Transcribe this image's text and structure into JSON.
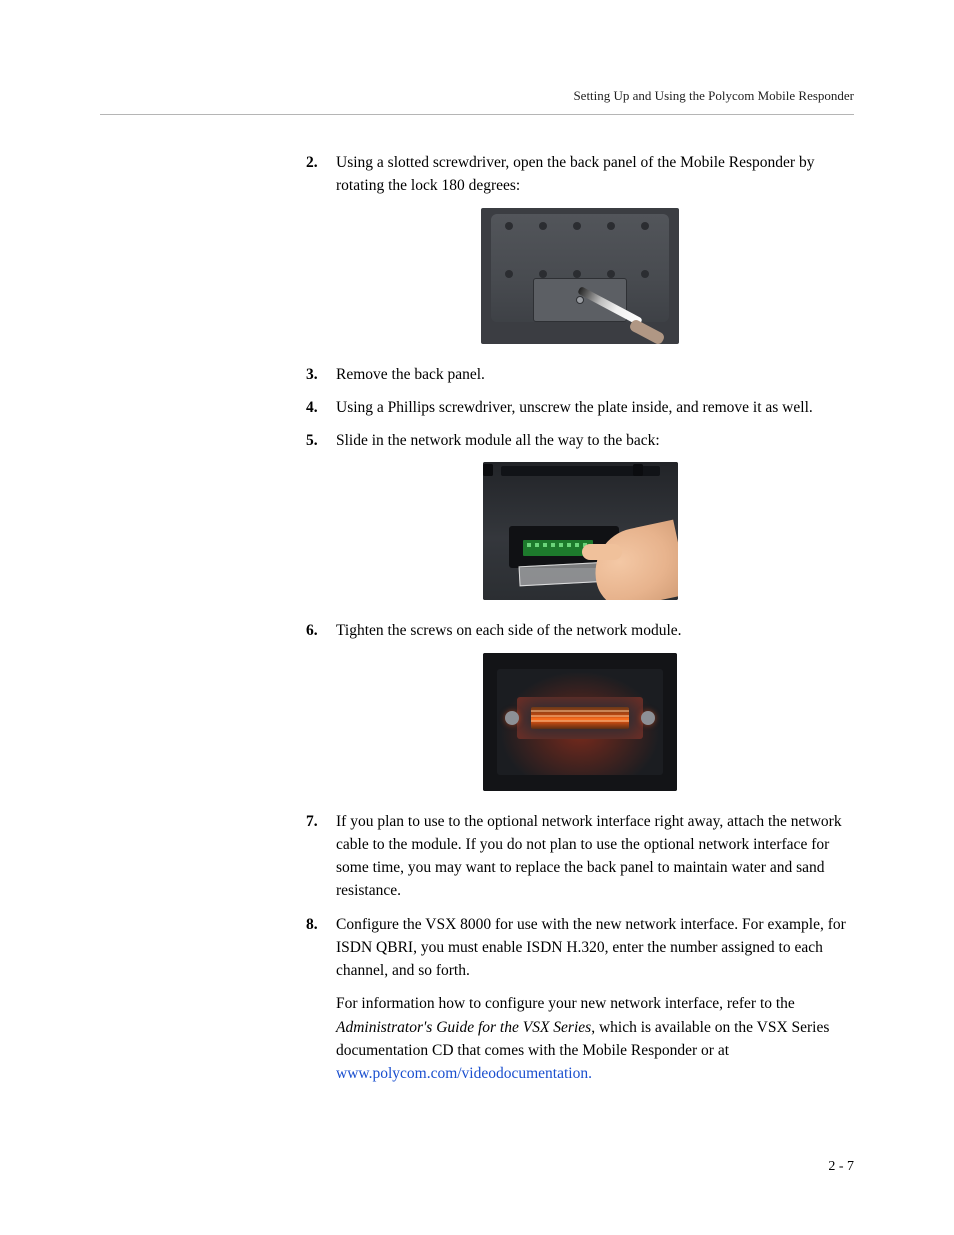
{
  "header": {
    "running_title": "Setting Up and Using the Polycom Mobile Responder"
  },
  "steps": {
    "s2": {
      "num": "2.",
      "text": "Using a slotted screwdriver, open the back panel of the Mobile Responder by rotating the lock 180 degrees:"
    },
    "s3": {
      "num": "3.",
      "text": "Remove the back panel."
    },
    "s4": {
      "num": "4.",
      "text": "Using a Phillips screwdriver, unscrew the plate inside, and remove it as well."
    },
    "s5": {
      "num": "5.",
      "text": "Slide in the network module all the way to the back:"
    },
    "s6": {
      "num": "6.",
      "text": "Tighten the screws on each side of the network module."
    },
    "s7": {
      "num": "7.",
      "text": "If you plan to use to the optional network interface right away, attach the network cable to the module. If you do not plan to use the optional network interface for some time, you may want to replace the back panel to maintain water and sand resistance."
    },
    "s8": {
      "num": "8.",
      "p1": "Configure the VSX 8000 for use with the new network interface. For example, for ISDN QBRI, you must enable ISDN H.320, enter the number assigned to each channel, and so forth.",
      "p2a": "For information how to configure your new network interface, refer to the ",
      "p2_italic": "Administrator's Guide for the VSX Series",
      "p2b": ", which is available on the VSX Series documentation CD that comes with the Mobile Responder or at ",
      "p2_link": "www.polycom.com/videodocumentation."
    }
  },
  "figures": {
    "fig1_alt": "Back panel of Mobile Responder being opened with slotted screwdriver",
    "fig2_alt": "Hand sliding network module into the back of the unit",
    "fig3_alt": "Network module installed, screws on each side, internal glow visible"
  },
  "footer": {
    "page_number": "2 - 7"
  },
  "style": {
    "link_color": "#1a4fcf",
    "body_font": "Palatino-style serif",
    "rule_color": "#b5b5b5"
  }
}
